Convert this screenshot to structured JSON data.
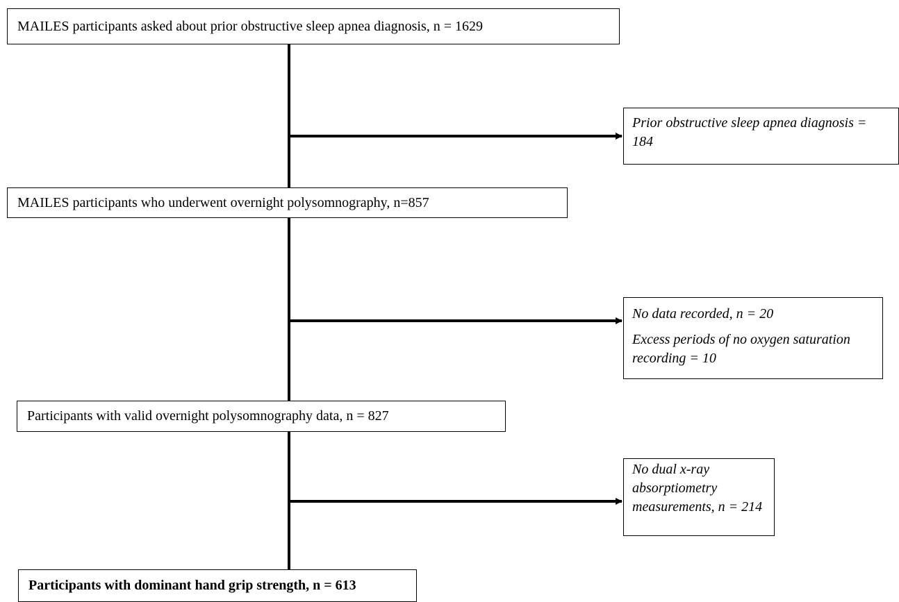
{
  "flowchart": {
    "main_steps": [
      {
        "text": "MAILES participants asked about prior obstructive sleep apnea diagnosis, n = 1629"
      },
      {
        "text": "MAILES participants who underwent overnight polysomnography, n=857"
      },
      {
        "text": "Participants with valid overnight polysomnography data, n = 827"
      },
      {
        "text": "Participants with dominant hand grip strength, n = 613"
      }
    ],
    "exclusions": [
      {
        "lines": [
          "Prior obstructive sleep apnea diagnosis = 184"
        ]
      },
      {
        "lines": [
          "No data recorded, n = 20",
          "Excess periods of no oxygen saturation recording = 10"
        ]
      },
      {
        "lines": [
          "No dual x-ray absorptiometry measurements, n = 214"
        ]
      }
    ]
  }
}
